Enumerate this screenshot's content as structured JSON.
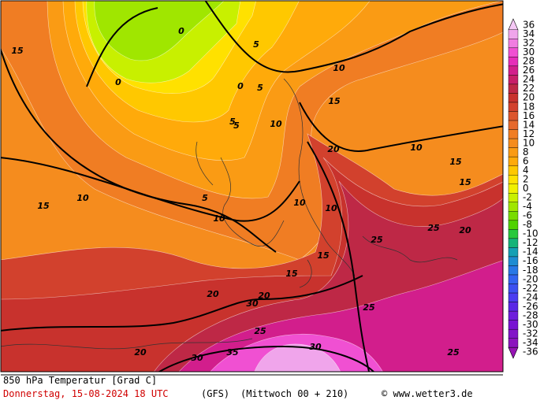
{
  "map": {
    "contour_labels": [
      "0",
      "0",
      "0",
      "5",
      "5",
      "5",
      "5",
      "5",
      "10",
      "10",
      "10",
      "10",
      "10",
      "10",
      "10",
      "15",
      "15",
      "15",
      "15",
      "15",
      "15",
      "15",
      "20",
      "20",
      "20",
      "20",
      "20",
      "25",
      "25",
      "25",
      "25",
      "25",
      "30",
      "30",
      "30",
      "35"
    ]
  },
  "legend": {
    "values": [
      36,
      34,
      32,
      30,
      28,
      26,
      24,
      22,
      20,
      18,
      16,
      14,
      12,
      10,
      8,
      6,
      4,
      2,
      0,
      -2,
      -4,
      -6,
      -8,
      -10,
      -12,
      -14,
      -16,
      -18,
      -20,
      -22,
      -24,
      -26,
      -28,
      -30,
      -32,
      -34,
      -36
    ],
    "colors": [
      "#f5c8f5",
      "#f0a5eb",
      "#f07de1",
      "#f050d2",
      "#e62db9",
      "#d21e8c",
      "#c81e69",
      "#be2846",
      "#c8322d",
      "#d2412d",
      "#dc552d",
      "#e6692d",
      "#f07d23",
      "#f58c1e",
      "#fa9b14",
      "#ffaa0a",
      "#ffc800",
      "#ffe100",
      "#f0f000",
      "#c8f000",
      "#a0e600",
      "#78dc00",
      "#50d200",
      "#28c83c",
      "#14b478",
      "#14a0b4",
      "#1e8cd2",
      "#2878e6",
      "#3264f0",
      "#3c50f0",
      "#4b3cf0",
      "#5a28e6",
      "#6e1edc",
      "#7814d2",
      "#8214c8",
      "#8c14be",
      "#9614b4"
    ]
  },
  "footer": {
    "field": "850 hPa Temperatur [Grad C]",
    "date": "Donnerstag, 15-08-2024   18 UTC",
    "model": "(GFS)",
    "run": "(Mittwoch 00 + 210)",
    "credit": "© www.wetter3.de"
  }
}
